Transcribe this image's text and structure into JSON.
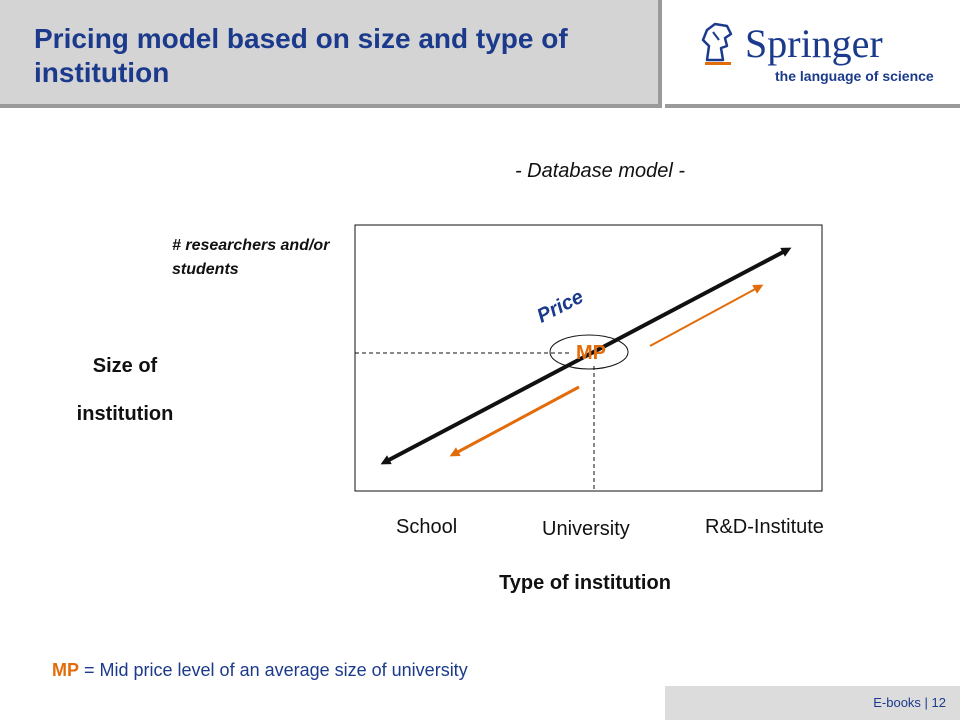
{
  "header": {
    "title": "Pricing model based on size and type of institution"
  },
  "logo": {
    "name": "Springer",
    "tagline": "the language of science",
    "icon": "knight-horse-icon"
  },
  "diagram": {
    "subtitle": "- Database model -",
    "y_axis_note": "# researchers and/or students",
    "y_axis_title_line1": "Size of",
    "y_axis_title_line2": "institution",
    "price_label": "Price",
    "mp_label": "MP",
    "x_categories": [
      "School",
      "University",
      "R&D-Institute"
    ],
    "x_axis_title": "Type of institution",
    "colors": {
      "accent": "#e36c0a",
      "main_line": "#111111",
      "title": "#1b3a8c"
    }
  },
  "footnote": {
    "mp": "MP",
    "text": " = Mid price level of an average size of university"
  },
  "footer": {
    "text": "E-books  |  12"
  }
}
